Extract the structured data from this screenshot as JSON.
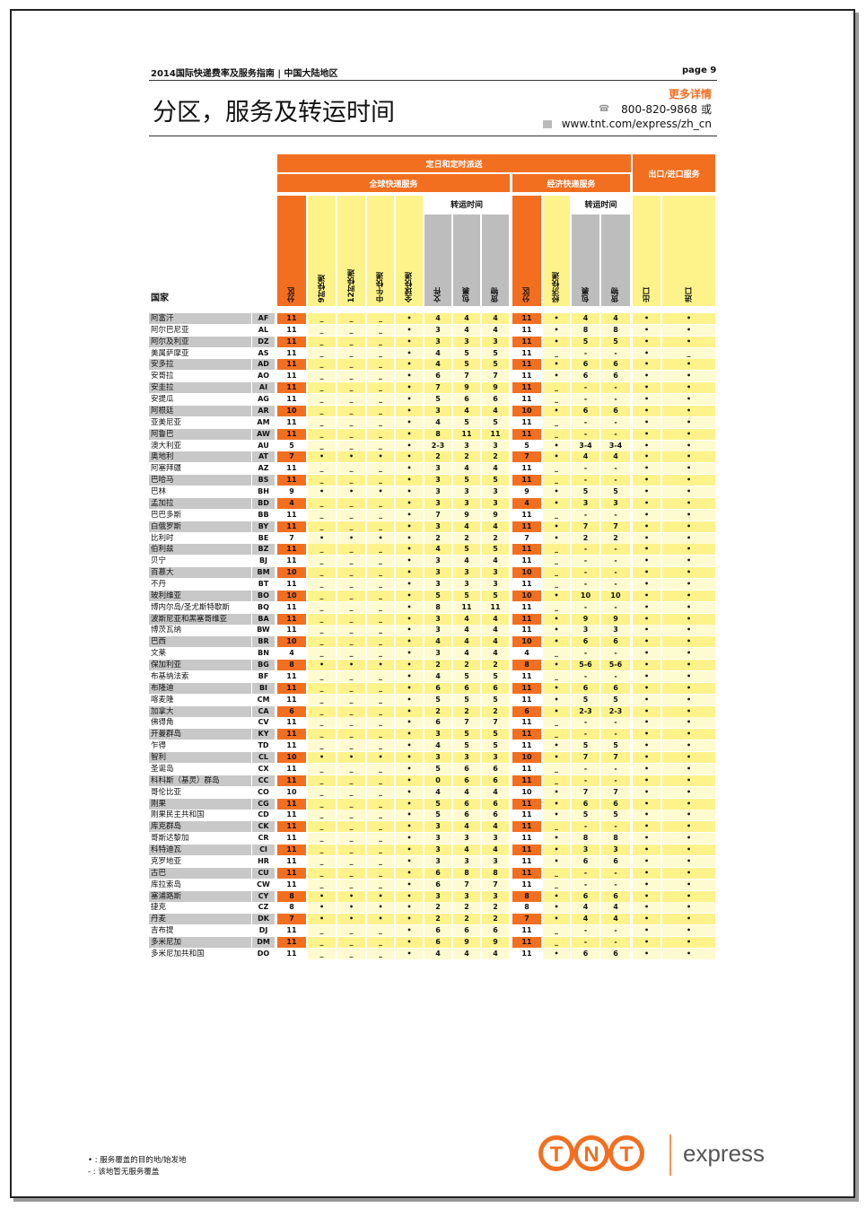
{
  "header": {
    "left": "2014国际快递费率及服务指南 | 中国大陆地区",
    "page": "page 9"
  },
  "title": "分区，服务及转运时间",
  "contact": {
    "more": "更多详情",
    "phone": "800-820-9868 或",
    "web": "www.tnt.com/express/zh_cn"
  },
  "table_headers": {
    "band_top": "定日和定时派送",
    "global": "全球快递服务",
    "economy": "经济快递服务",
    "export_import": "出口/进口服务",
    "transit": "转运时间",
    "transit2": "转运时间",
    "country": "国家",
    "cols": [
      "分区",
      "9时快递",
      "12时快递",
      "中午快递",
      "全球快递",
      "文件",
      "包裹",
      "货物",
      "分区",
      "经济快递",
      "包裹",
      "货物",
      "出口",
      "进口"
    ]
  },
  "colors": {
    "orange": "#f26f20",
    "yellow": "#fef38a",
    "light_yellow": "#fffbd0",
    "gray": "#bdbdbd"
  },
  "rows": [
    [
      "阿富汗",
      "AF",
      "11",
      "_",
      "_",
      "_",
      "•",
      "4",
      "4",
      "4",
      "11",
      "•",
      "4",
      "4",
      "•",
      "•"
    ],
    [
      "阿尔巴尼亚",
      "AL",
      "11",
      "_",
      "_",
      "_",
      "•",
      "3",
      "4",
      "4",
      "11",
      "•",
      "8",
      "8",
      "•",
      "•"
    ],
    [
      "阿尔及利亚",
      "DZ",
      "11",
      "_",
      "_",
      "_",
      "•",
      "3",
      "3",
      "3",
      "11",
      "•",
      "5",
      "5",
      "•",
      "•"
    ],
    [
      "美属萨摩亚",
      "AS",
      "11",
      "_",
      "_",
      "_",
      "•",
      "4",
      "5",
      "5",
      "11",
      "_",
      "-",
      "-",
      "•",
      "_"
    ],
    [
      "安多拉",
      "AD",
      "11",
      "_",
      "_",
      "_",
      "•",
      "4",
      "5",
      "5",
      "11",
      "•",
      "6",
      "6",
      "•",
      "•"
    ],
    [
      "安哥拉",
      "AO",
      "11",
      "_",
      "_",
      "_",
      "•",
      "6",
      "7",
      "7",
      "11",
      "•",
      "6",
      "6",
      "•",
      "•"
    ],
    [
      "安圭拉",
      "AI",
      "11",
      "_",
      "_",
      "_",
      "•",
      "7",
      "9",
      "9",
      "11",
      "_",
      "-",
      "-",
      "•",
      "•"
    ],
    [
      "安提瓜",
      "AG",
      "11",
      "_",
      "_",
      "_",
      "•",
      "5",
      "6",
      "6",
      "11",
      "_",
      "-",
      "-",
      "•",
      "•"
    ],
    [
      "阿根廷",
      "AR",
      "10",
      "_",
      "_",
      "_",
      "•",
      "3",
      "4",
      "4",
      "10",
      "•",
      "6",
      "6",
      "•",
      "•"
    ],
    [
      "亚美尼亚",
      "AM",
      "11",
      "_",
      "_",
      "_",
      "•",
      "4",
      "5",
      "5",
      "11",
      "_",
      "-",
      "-",
      "•",
      "•"
    ],
    [
      "阿鲁巴",
      "AW",
      "11",
      "_",
      "_",
      "_",
      "•",
      "8",
      "11",
      "11",
      "11",
      "_",
      "-",
      "-",
      "•",
      "•"
    ],
    [
      "澳大利亚",
      "AU",
      "5",
      "_",
      "_",
      "_",
      "•",
      "2-3",
      "3",
      "3",
      "5",
      "•",
      "3-4",
      "3-4",
      "•",
      "•"
    ],
    [
      "奥地利",
      "AT",
      "7",
      "•",
      "•",
      "•",
      "•",
      "2",
      "2",
      "2",
      "7",
      "•",
      "4",
      "4",
      "•",
      "•"
    ],
    [
      "阿塞拜疆",
      "AZ",
      "11",
      "_",
      "_",
      "_",
      "•",
      "3",
      "4",
      "4",
      "11",
      "_",
      "-",
      "-",
      "•",
      "•"
    ],
    [
      "巴哈马",
      "BS",
      "11",
      "_",
      "_",
      "_",
      "•",
      "3",
      "5",
      "5",
      "11",
      "_",
      "-",
      "-",
      "•",
      "•"
    ],
    [
      "巴林",
      "BH",
      "9",
      "•",
      "•",
      "•",
      "•",
      "3",
      "3",
      "3",
      "9",
      "•",
      "5",
      "5",
      "•",
      "•"
    ],
    [
      "孟加拉",
      "BD",
      "4",
      "_",
      "_",
      "_",
      "•",
      "3",
      "3",
      "3",
      "4",
      "•",
      "3",
      "3",
      "•",
      "•"
    ],
    [
      "巴巴多斯",
      "BB",
      "11",
      "_",
      "_",
      "_",
      "•",
      "7",
      "9",
      "9",
      "11",
      "_",
      "-",
      "-",
      "•",
      "•"
    ],
    [
      "白俄罗斯",
      "BY",
      "11",
      "_",
      "_",
      "_",
      "•",
      "3",
      "4",
      "4",
      "11",
      "•",
      "7",
      "7",
      "•",
      "•"
    ],
    [
      "比利时",
      "BE",
      "7",
      "•",
      "•",
      "•",
      "•",
      "2",
      "2",
      "2",
      "7",
      "•",
      "2",
      "2",
      "•",
      "•"
    ],
    [
      "伯利兹",
      "BZ",
      "11",
      "_",
      "_",
      "_",
      "•",
      "4",
      "5",
      "5",
      "11",
      "_",
      "-",
      "-",
      "•",
      "•"
    ],
    [
      "贝宁",
      "BJ",
      "11",
      "_",
      "_",
      "_",
      "•",
      "3",
      "4",
      "4",
      "11",
      "_",
      "-",
      "-",
      "•",
      "•"
    ],
    [
      "百慕大",
      "BM",
      "10",
      "_",
      "_",
      "_",
      "•",
      "3",
      "3",
      "3",
      "10",
      "_",
      "-",
      "-",
      "•",
      "•"
    ],
    [
      "不丹",
      "BT",
      "11",
      "_",
      "_",
      "_",
      "•",
      "3",
      "3",
      "3",
      "11",
      "_",
      "-",
      "-",
      "•",
      "•"
    ],
    [
      "玻利维亚",
      "BO",
      "10",
      "_",
      "_",
      "_",
      "•",
      "5",
      "5",
      "5",
      "10",
      "•",
      "10",
      "10",
      "•",
      "•"
    ],
    [
      "博内尔岛/圣尤斯特歇斯",
      "BQ",
      "11",
      "_",
      "_",
      "_",
      "•",
      "8",
      "11",
      "11",
      "11",
      "_",
      "-",
      "-",
      "•",
      "•"
    ],
    [
      "波斯尼亚和黑塞哥维亚",
      "BA",
      "11",
      "_",
      "_",
      "_",
      "•",
      "3",
      "4",
      "4",
      "11",
      "•",
      "9",
      "9",
      "•",
      "•"
    ],
    [
      "博茨瓦纳",
      "BW",
      "11",
      "_",
      "_",
      "_",
      "•",
      "3",
      "4",
      "4",
      "11",
      "•",
      "3",
      "3",
      "•",
      "•"
    ],
    [
      "巴西",
      "BR",
      "10",
      "_",
      "_",
      "_",
      "•",
      "4",
      "4",
      "4",
      "10",
      "•",
      "6",
      "6",
      "•",
      "•"
    ],
    [
      "文莱",
      "BN",
      "4",
      "_",
      "_",
      "_",
      "•",
      "3",
      "4",
      "4",
      "4",
      "_",
      "-",
      "-",
      "•",
      "•"
    ],
    [
      "保加利亚",
      "BG",
      "8",
      "•",
      "•",
      "•",
      "•",
      "2",
      "2",
      "2",
      "8",
      "•",
      "5-6",
      "5-6",
      "•",
      "•"
    ],
    [
      "布基纳法索",
      "BF",
      "11",
      "_",
      "_",
      "_",
      "•",
      "4",
      "5",
      "5",
      "11",
      "_",
      "-",
      "-",
      "•",
      "•"
    ],
    [
      "布隆迪",
      "BI",
      "11",
      "_",
      "_",
      "_",
      "•",
      "6",
      "6",
      "6",
      "11",
      "•",
      "6",
      "6",
      "•",
      "•"
    ],
    [
      "喀麦隆",
      "CM",
      "11",
      "_",
      "_",
      "_",
      "•",
      "5",
      "5",
      "5",
      "11",
      "•",
      "5",
      "5",
      "•",
      "•"
    ],
    [
      "加拿大",
      "CA",
      "6",
      "_",
      "_",
      "_",
      "•",
      "2",
      "2",
      "2",
      "6",
      "•",
      "2-3",
      "2-3",
      "•",
      "•"
    ],
    [
      "佛得角",
      "CV",
      "11",
      "_",
      "_",
      "_",
      "•",
      "6",
      "7",
      "7",
      "11",
      "_",
      "-",
      "-",
      "•",
      "•"
    ],
    [
      "开曼群岛",
      "KY",
      "11",
      "_",
      "_",
      "_",
      "•",
      "3",
      "5",
      "5",
      "11",
      "_",
      "-",
      "-",
      "•",
      "•"
    ],
    [
      "乍得",
      "TD",
      "11",
      "_",
      "_",
      "_",
      "•",
      "4",
      "5",
      "5",
      "11",
      "•",
      "5",
      "5",
      "•",
      "•"
    ],
    [
      "智利",
      "CL",
      "10",
      "•",
      "•",
      "•",
      "•",
      "3",
      "3",
      "3",
      "10",
      "•",
      "7",
      "7",
      "•",
      "•"
    ],
    [
      "圣诞岛",
      "CX",
      "11",
      "_",
      "_",
      "_",
      "•",
      "5",
      "6",
      "6",
      "11",
      "_",
      "-",
      "-",
      "•",
      "•"
    ],
    [
      "科科斯（基灵）群岛",
      "CC",
      "11",
      "_",
      "_",
      "_",
      "•",
      "0",
      "6",
      "6",
      "11",
      "_",
      "-",
      "-",
      "•",
      "•"
    ],
    [
      "哥伦比亚",
      "CO",
      "10",
      "_",
      "_",
      "_",
      "•",
      "4",
      "4",
      "4",
      "10",
      "•",
      "7",
      "7",
      "•",
      "•"
    ],
    [
      "刚果",
      "CG",
      "11",
      "_",
      "_",
      "_",
      "•",
      "5",
      "6",
      "6",
      "11",
      "•",
      "6",
      "6",
      "•",
      "•"
    ],
    [
      "刚果民主共和国",
      "CD",
      "11",
      "_",
      "_",
      "_",
      "•",
      "5",
      "6",
      "6",
      "11",
      "•",
      "5",
      "5",
      "•",
      "•"
    ],
    [
      "库克群岛",
      "CK",
      "11",
      "_",
      "_",
      "_",
      "•",
      "3",
      "4",
      "4",
      "11",
      "_",
      "-",
      "-",
      "•",
      "•"
    ],
    [
      "哥斯达黎加",
      "CR",
      "11",
      "_",
      "_",
      "_",
      "•",
      "3",
      "3",
      "3",
      "11",
      "•",
      "8",
      "8",
      "•",
      "•"
    ],
    [
      "科特迪瓦",
      "CI",
      "11",
      "_",
      "_",
      "_",
      "•",
      "3",
      "4",
      "4",
      "11",
      "•",
      "3",
      "3",
      "•",
      "•"
    ],
    [
      "克罗地亚",
      "HR",
      "11",
      "_",
      "_",
      "_",
      "•",
      "3",
      "3",
      "3",
      "11",
      "•",
      "6",
      "6",
      "•",
      "•"
    ],
    [
      "古巴",
      "CU",
      "11",
      "_",
      "_",
      "_",
      "•",
      "6",
      "8",
      "8",
      "11",
      "_",
      "-",
      "-",
      "•",
      "•"
    ],
    [
      "库拉索岛",
      "CW",
      "11",
      "_",
      "_",
      "_",
      "•",
      "6",
      "7",
      "7",
      "11",
      "_",
      "-",
      "-",
      "•",
      "•"
    ],
    [
      "塞浦路斯",
      "CY",
      "8",
      "•",
      "•",
      "•",
      "•",
      "3",
      "3",
      "3",
      "8",
      "•",
      "6",
      "6",
      "•",
      "•"
    ],
    [
      "捷克",
      "CZ",
      "8",
      "•",
      "•",
      "•",
      "•",
      "2",
      "2",
      "2",
      "8",
      "•",
      "4",
      "4",
      "•",
      "•"
    ],
    [
      "丹麦",
      "DK",
      "7",
      "•",
      "•",
      "•",
      "•",
      "2",
      "2",
      "2",
      "7",
      "•",
      "4",
      "4",
      "•",
      "•"
    ],
    [
      "吉布提",
      "DJ",
      "11",
      "_",
      "_",
      "_",
      "•",
      "6",
      "6",
      "6",
      "11",
      "_",
      "-",
      "-",
      "•",
      "•"
    ],
    [
      "多米尼加",
      "DM",
      "11",
      "_",
      "_",
      "_",
      "•",
      "6",
      "9",
      "9",
      "11",
      "_",
      "-",
      "-",
      "•",
      "•"
    ],
    [
      "多米尼加共和国",
      "DO",
      "11",
      "_",
      "_",
      "_",
      "•",
      "4",
      "4",
      "4",
      "11",
      "•",
      "6",
      "6",
      "•",
      "•"
    ]
  ],
  "legend": [
    "• : 服务覆盖的目的地/始发地",
    "- : 该地暂无服务覆盖"
  ],
  "logo": {
    "brand": "TNT",
    "text": "express"
  }
}
